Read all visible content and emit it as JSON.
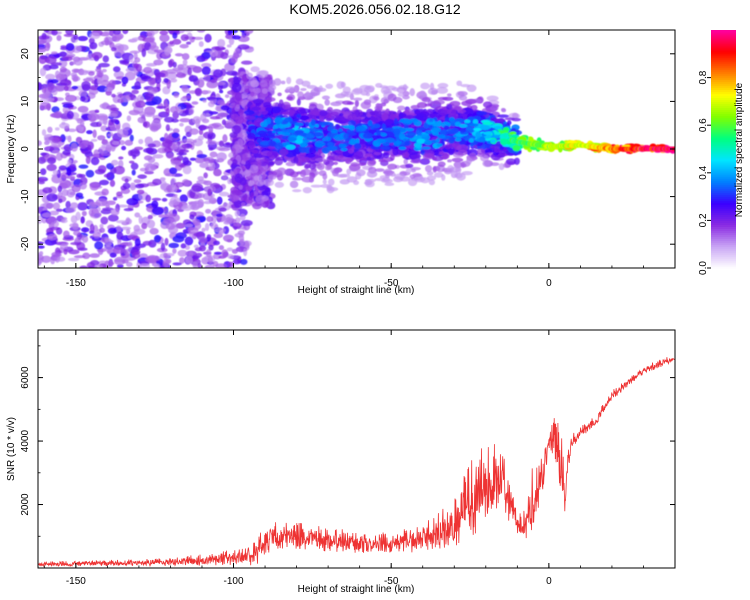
{
  "title": "KOM5.2026.056.02.18.G12",
  "chart_data": [
    {
      "type": "heatmap",
      "title": "KOM5.2026.056.02.18.G12",
      "xlabel": "Height of straight line (km)",
      "ylabel": "Frequency (Hz)",
      "xlim": [
        -162,
        40
      ],
      "ylim": [
        -25,
        25
      ],
      "xticks": [
        -150,
        -100,
        -50,
        0
      ],
      "xtick_labels": [
        "-150",
        "-100",
        "-50",
        "0"
      ],
      "yticks": [
        -20,
        -10,
        0,
        10,
        20
      ],
      "ytick_labels": [
        "-20",
        "-10",
        "0",
        "10",
        "20"
      ],
      "colorbar": {
        "label": "Normalized spectral amplitude",
        "range": [
          0,
          1
        ],
        "ticks": [
          0.0,
          0.2,
          0.4,
          0.6,
          0.8
        ],
        "tick_labels": [
          "0.0",
          "0.2",
          "0.4",
          "0.6",
          "0.8"
        ],
        "colormap": [
          "#ffffff",
          "#c9a6f5",
          "#8a2be2",
          "#3a00ff",
          "#0080ff",
          "#00e5ff",
          "#00ff80",
          "#80ff00",
          "#ffff00",
          "#ff8000",
          "#ff0000",
          "#ff00a0"
        ]
      },
      "ridge": [
        {
          "x": -90,
          "f": 4,
          "amp": 0.35
        },
        {
          "x": -80,
          "f": 3,
          "amp": 0.4
        },
        {
          "x": -70,
          "f": 2.5,
          "amp": 0.35
        },
        {
          "x": -60,
          "f": 3,
          "amp": 0.35
        },
        {
          "x": -50,
          "f": 3,
          "amp": 0.35
        },
        {
          "x": -40,
          "f": 3,
          "amp": 0.4
        },
        {
          "x": -30,
          "f": 4,
          "amp": 0.35
        },
        {
          "x": -20,
          "f": 4,
          "amp": 0.45
        },
        {
          "x": -10,
          "f": 1.5,
          "amp": 0.6
        },
        {
          "x": 0,
          "f": 0.5,
          "amp": 0.7
        },
        {
          "x": 10,
          "f": 0.8,
          "amp": 0.75
        },
        {
          "x": 20,
          "f": 0,
          "amp": 0.85
        },
        {
          "x": 30,
          "f": 0,
          "amp": 0.95
        },
        {
          "x": 38,
          "f": 0,
          "amp": 1.0
        }
      ]
    },
    {
      "type": "line",
      "xlabel": "Height of straight line (km)",
      "ylabel": "SNR (10 * v/v)",
      "xlim": [
        -162,
        40
      ],
      "ylim": [
        0,
        7500
      ],
      "xticks": [
        -150,
        -100,
        -50,
        0
      ],
      "xtick_labels": [
        "-150",
        "-100",
        "-50",
        "0"
      ],
      "yticks": [
        2000,
        4000,
        6000
      ],
      "ytick_labels": [
        "2000",
        "4000",
        "6000"
      ],
      "color": "#ee3333",
      "envelope": {
        "x": [
          -162,
          -120,
          -100,
          -93,
          -90,
          -85,
          -80,
          -70,
          -60,
          -50,
          -40,
          -30,
          -25,
          -20,
          -15,
          -10,
          -7,
          -5,
          -2,
          0,
          3,
          5,
          7,
          10,
          15,
          20,
          30,
          40
        ],
        "base": [
          100,
          150,
          250,
          350,
          800,
          900,
          850,
          800,
          700,
          700,
          800,
          1200,
          1800,
          2200,
          2600,
          1200,
          1300,
          2000,
          2800,
          3900,
          3500,
          2200,
          3900,
          4200,
          4600,
          5400,
          6200,
          6600
        ],
        "amp": [
          150,
          250,
          500,
          900,
          1000,
          1000,
          900,
          800,
          700,
          650,
          900,
          1600,
          2500,
          2700,
          2000,
          700,
          1300,
          2000,
          1200,
          500,
          2500,
          1600,
          500,
          400,
          350,
          300,
          250,
          250
        ]
      }
    }
  ]
}
